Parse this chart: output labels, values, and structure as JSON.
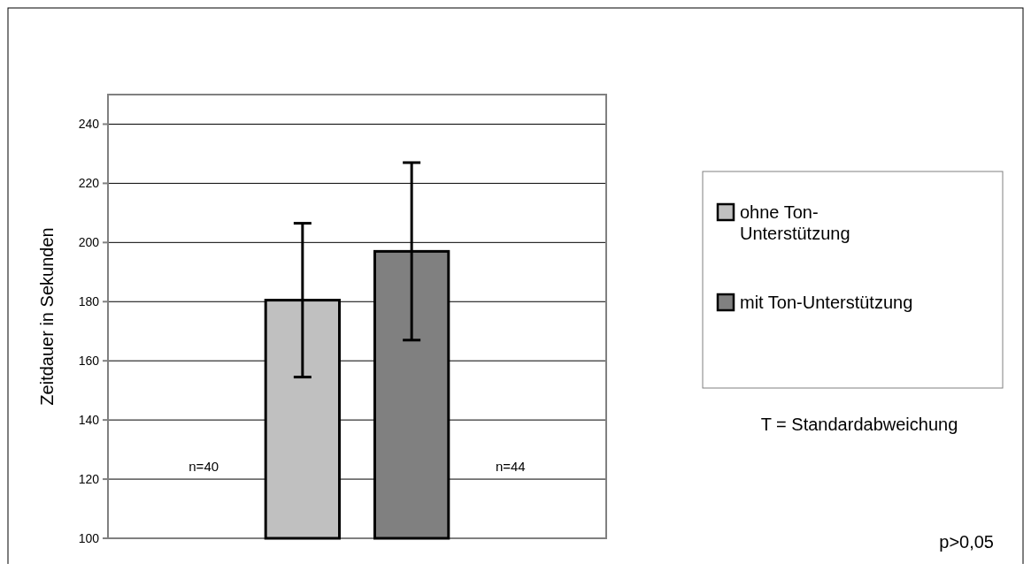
{
  "chart_data": {
    "type": "bar",
    "ylabel": "Zeitdauer in Sekunden",
    "categories": [
      null
    ],
    "series": [
      {
        "name": "ohne Ton-Unterstützung",
        "color": "#c0c0c0",
        "values": [
          180.5
        ],
        "errors": [
          26
        ]
      },
      {
        "name": "mit Ton-Unterstützung",
        "color": "#808080",
        "values": [
          197
        ],
        "errors": [
          30
        ]
      }
    ],
    "ylim": [
      100,
      250
    ],
    "yticks": [
      100,
      120,
      140,
      160,
      180,
      200,
      220,
      240
    ],
    "grid": "y",
    "legend": "right",
    "annotations": [
      "n=40",
      "n=44",
      "T = Standardabweichung",
      "p>0,05"
    ]
  }
}
